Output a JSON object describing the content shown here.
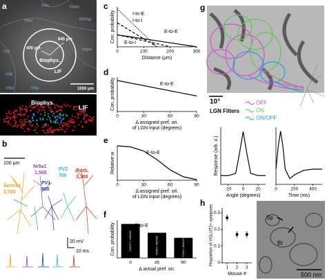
{
  "chart_data": [
    {
      "type": "line",
      "ylabel": "Con. probability",
      "xlabel": "Distance (μm)",
      "x": [
        0,
        50,
        100,
        150,
        200,
        250,
        300
      ],
      "xlim": [
        0,
        300
      ],
      "ylim": [
        0,
        1
      ],
      "xticks": [
        0,
        100,
        200,
        300
      ],
      "series": [
        {
          "name": "I-to-E",
          "color": "#000000",
          "dash": "dotted",
          "values": [
            0.95,
            0.63,
            0.31,
            0.0,
            null,
            null,
            null
          ]
        },
        {
          "name": "I-to-I",
          "color": "#000000",
          "dash": "dashed",
          "values": [
            0.6,
            0.4,
            0.2,
            0.0,
            null,
            null,
            null
          ]
        },
        {
          "name": "E-to-E",
          "color": "#000000",
          "dash": "solid",
          "values": [
            0.3,
            0.25,
            0.2,
            0.15,
            0.1,
            0.05,
            0.0
          ]
        },
        {
          "name": "E-to-I",
          "color": "#000000",
          "dash": "dashed",
          "values": [
            0.3,
            0.23,
            0.15,
            0.08,
            0.0,
            null,
            null
          ]
        }
      ]
    },
    {
      "type": "line",
      "ylabel": "Con. probability",
      "xlabel": [
        "Δ assigned pref. ori.",
        "of LGN input (degrees)"
      ],
      "x": [
        0,
        90
      ],
      "xlim": [
        0,
        90
      ],
      "ylim": [
        0,
        1
      ],
      "xticks": [
        0,
        30,
        60,
        90
      ],
      "series": [
        {
          "name": "E-to-E",
          "color": "#000000",
          "dash": "solid",
          "values": [
            0.9,
            0.45
          ]
        }
      ]
    },
    {
      "type": "line",
      "ylabel": "Relative w",
      "xlabel": [
        "Δ assigned pref. ori.",
        "of LGN input (degrees)"
      ],
      "x": [
        0,
        15,
        30,
        45,
        60,
        75,
        90
      ],
      "xlim": [
        0,
        90
      ],
      "ylim": [
        0,
        1
      ],
      "xticks": [
        0,
        30,
        60,
        90
      ],
      "series": [
        {
          "name": "E-to-E",
          "color": "#000000",
          "dash": "solid",
          "values": [
            1.0,
            0.97,
            0.85,
            0.6,
            0.3,
            0.1,
            0.02
          ]
        }
      ]
    },
    {
      "type": "bar",
      "ylabel": "Con. probability",
      "xlabel": "Δ actual pref. ori.",
      "categories": [
        "0",
        "45",
        "90"
      ],
      "ylim": [
        0,
        0.3
      ],
      "series": [
        {
          "name": "E-to-E",
          "color": "#000000",
          "values": [
            0.27,
            0.2,
            0.16
          ],
          "bar_annotations": [
            "126377 / 460344",
            "95453 / 480365",
            "77442 / 480170"
          ]
        }
      ]
    },
    {
      "type": "line",
      "ylabel": "Response (arb. u.)",
      "xlabel": "Angle (degrees)",
      "x": [
        -30,
        -20,
        -10,
        -5,
        0,
        5,
        10,
        20,
        30
      ],
      "xlim": [
        -30,
        30
      ],
      "ylim": [
        -0.2,
        1.1
      ],
      "xticks": [
        -20,
        0,
        20
      ],
      "series": [
        {
          "color": "#000000",
          "dash": "solid",
          "values": [
            0,
            0,
            0.05,
            0.5,
            1,
            0.5,
            0.05,
            0,
            0
          ]
        }
      ]
    },
    {
      "type": "line",
      "xlabel": "Time (ms)",
      "x": [
        0,
        25,
        50,
        75,
        100,
        150,
        200,
        300,
        400,
        500
      ],
      "xlim": [
        0,
        500
      ],
      "ylim": [
        -0.4,
        1.1
      ],
      "xticks": [
        0,
        200,
        400
      ],
      "series": [
        {
          "color": "#000000",
          "dash": "solid",
          "values": [
            0,
            0.6,
            1,
            0.6,
            0,
            -0.25,
            -0.15,
            -0.03,
            0,
            0
          ]
        }
      ]
    },
    {
      "type": "scatter",
      "ylabel": "Proportion of VGLUT2+ synapses",
      "xlabel": "Mouse #",
      "x": [
        1,
        2,
        3
      ],
      "xlim": [
        0.5,
        3.5
      ],
      "ylim": [
        0,
        0.33
      ],
      "xticks": [
        1,
        2,
        3
      ],
      "yticks": [
        0,
        0.1,
        0.2,
        0.3
      ],
      "series": [
        {
          "color": "#000000",
          "values": [
            0.27,
            0.17,
            0.17
          ],
          "errors": [
            0.02,
            0.02,
            0.02
          ]
        }
      ]
    }
  ],
  "panel_labels": [
    "a",
    "b",
    "c",
    "d",
    "e",
    "f",
    "g",
    "h"
  ],
  "panel_a": {
    "areas": [
      "VISa",
      "VISam",
      "RSPagl",
      "VISal",
      "VISpm",
      "VISl",
      "VISli",
      "VISpl",
      "VISp"
    ],
    "r_inner": "400 μm",
    "r_outer": "845 μm",
    "inner": "Biophys.",
    "outer": "LIF",
    "scale": "1000 μm",
    "render_inner": "Biophys.",
    "render_outer": "LIF"
  },
  "panel_b": {
    "scale": "100 μm",
    "cells": [
      {
        "name": "Scnn1a",
        "count": "3,700"
      },
      {
        "name": "Nr5a1",
        "count": "1,500"
      },
      {
        "name": "PV1",
        "count": "800"
      },
      {
        "name": "PV2",
        "count": "700"
      },
      {
        "name": "Rorb,",
        "count": "3,300"
      }
    ],
    "voltage": "20 mV",
    "time": "10 ms"
  },
  "panel_g": {
    "scale": "10°",
    "filters": "LGN Filters",
    "legend": [
      "OFF",
      "ON",
      "ON/OFF"
    ]
  },
  "panel_h": {
    "labels": [
      "Sp",
      "Bt"
    ],
    "scale": "500 nm"
  }
}
